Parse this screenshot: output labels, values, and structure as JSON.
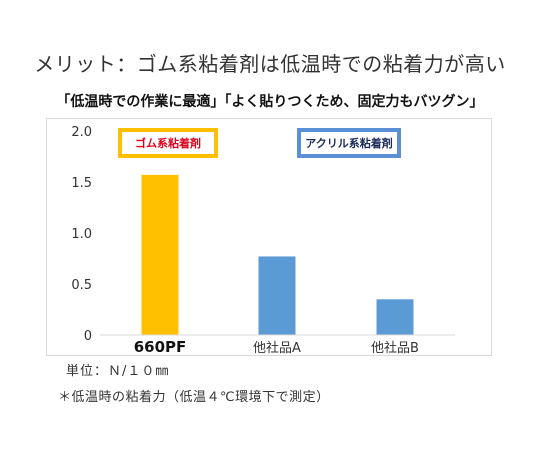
{
  "header": {
    "title": "メリット：ゴム系粘着剤は低温時での粘着力が高い",
    "subtitle": "「低温時での作業に最適」「よく貼りつくため、固定力もバツグン」"
  },
  "legend": {
    "rubber_label": "ゴム系粘着剤",
    "acrylic_label": "アクリル系粘着剤"
  },
  "footer": {
    "unit": "単位：Ｎ/１０㎜",
    "note": "＊低温時の粘着力（低温４℃環境下で測定）"
  },
  "colors": {
    "rubber": "#ffc000",
    "acrylic": "#5b9bd5",
    "rubber_text": "#e0001c",
    "acrylic_border": "#5b8fd6"
  },
  "chart_data": {
    "type": "bar",
    "categories": [
      "660PF",
      "他社品A",
      "他社品B"
    ],
    "values": [
      1.57,
      0.77,
      0.35
    ],
    "ylim": [
      0,
      2.0
    ],
    "yticks": [
      0,
      0.5,
      1.0,
      1.5,
      2.0
    ],
    "ytick_labels": [
      "0",
      "0.5",
      "1.0",
      "1.5",
      "2.0"
    ],
    "grid": false
  }
}
